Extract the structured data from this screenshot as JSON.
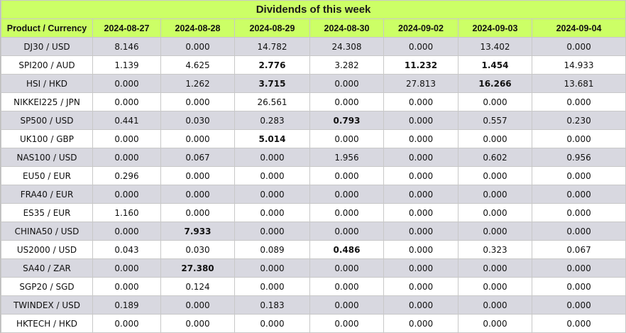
{
  "title": "Dividends of this week",
  "columns": [
    "Product / Currency",
    "2024-08-27",
    "2024-08-28",
    "2024-08-29",
    "2024-08-30",
    "2024-09-02",
    "2024-09-03",
    "2024-09-04"
  ],
  "rows": [
    {
      "product": "DJ30 / USD",
      "values": [
        "8.146",
        "0.000",
        "14.782",
        "24.308",
        "0.000",
        "13.402",
        "0.000"
      ],
      "bold": [
        false,
        false,
        false,
        false,
        false,
        false,
        false
      ]
    },
    {
      "product": "SPI200 / AUD",
      "values": [
        "1.139",
        "4.625",
        "2.776",
        "3.282",
        "11.232",
        "1.454",
        "14.933"
      ],
      "bold": [
        false,
        false,
        true,
        false,
        true,
        true,
        false
      ]
    },
    {
      "product": "HSI / HKD",
      "values": [
        "0.000",
        "1.262",
        "3.715",
        "0.000",
        "27.813",
        "16.266",
        "13.681"
      ],
      "bold": [
        false,
        false,
        true,
        false,
        false,
        true,
        false
      ]
    },
    {
      "product": "NIKKEI225 / JPN",
      "values": [
        "0.000",
        "0.000",
        "26.561",
        "0.000",
        "0.000",
        "0.000",
        "0.000"
      ],
      "bold": [
        false,
        false,
        false,
        false,
        false,
        false,
        false
      ]
    },
    {
      "product": "SP500 / USD",
      "values": [
        "0.441",
        "0.030",
        "0.283",
        "0.793",
        "0.000",
        "0.557",
        "0.230"
      ],
      "bold": [
        false,
        false,
        false,
        true,
        false,
        false,
        false
      ]
    },
    {
      "product": "UK100 / GBP",
      "values": [
        "0.000",
        "0.000",
        "5.014",
        "0.000",
        "0.000",
        "0.000",
        "0.000"
      ],
      "bold": [
        false,
        false,
        true,
        false,
        false,
        false,
        false
      ]
    },
    {
      "product": "NAS100 / USD",
      "values": [
        "0.000",
        "0.067",
        "0.000",
        "1.956",
        "0.000",
        "0.602",
        "0.956"
      ],
      "bold": [
        false,
        false,
        false,
        false,
        false,
        false,
        false
      ]
    },
    {
      "product": "EU50 / EUR",
      "values": [
        "0.296",
        "0.000",
        "0.000",
        "0.000",
        "0.000",
        "0.000",
        "0.000"
      ],
      "bold": [
        false,
        false,
        false,
        false,
        false,
        false,
        false
      ]
    },
    {
      "product": "FRA40 / EUR",
      "values": [
        "0.000",
        "0.000",
        "0.000",
        "0.000",
        "0.000",
        "0.000",
        "0.000"
      ],
      "bold": [
        false,
        false,
        false,
        false,
        false,
        false,
        false
      ]
    },
    {
      "product": "ES35 / EUR",
      "values": [
        "1.160",
        "0.000",
        "0.000",
        "0.000",
        "0.000",
        "0.000",
        "0.000"
      ],
      "bold": [
        false,
        false,
        false,
        false,
        false,
        false,
        false
      ]
    },
    {
      "product": "CHINA50 / USD",
      "values": [
        "0.000",
        "7.933",
        "0.000",
        "0.000",
        "0.000",
        "0.000",
        "0.000"
      ],
      "bold": [
        false,
        true,
        false,
        false,
        false,
        false,
        false
      ]
    },
    {
      "product": "US2000 / USD",
      "values": [
        "0.043",
        "0.030",
        "0.089",
        "0.486",
        "0.000",
        "0.323",
        "0.067"
      ],
      "bold": [
        false,
        false,
        false,
        true,
        false,
        false,
        false
      ]
    },
    {
      "product": "SA40 / ZAR",
      "values": [
        "0.000",
        "27.380",
        "0.000",
        "0.000",
        "0.000",
        "0.000",
        "0.000"
      ],
      "bold": [
        false,
        true,
        false,
        false,
        false,
        false,
        false
      ]
    },
    {
      "product": "SGP20 / SGD",
      "values": [
        "0.000",
        "0.124",
        "0.000",
        "0.000",
        "0.000",
        "0.000",
        "0.000"
      ],
      "bold": [
        false,
        false,
        false,
        false,
        false,
        false,
        false
      ]
    },
    {
      "product": "TWINDEX / USD",
      "values": [
        "0.189",
        "0.000",
        "0.183",
        "0.000",
        "0.000",
        "0.000",
        "0.000"
      ],
      "bold": [
        false,
        false,
        false,
        false,
        false,
        false,
        false
      ]
    },
    {
      "product": "HKTECH / HKD",
      "values": [
        "0.000",
        "0.000",
        "0.000",
        "0.000",
        "0.000",
        "0.000",
        "0.000"
      ],
      "bold": [
        false,
        false,
        false,
        false,
        false,
        false,
        false
      ]
    }
  ]
}
